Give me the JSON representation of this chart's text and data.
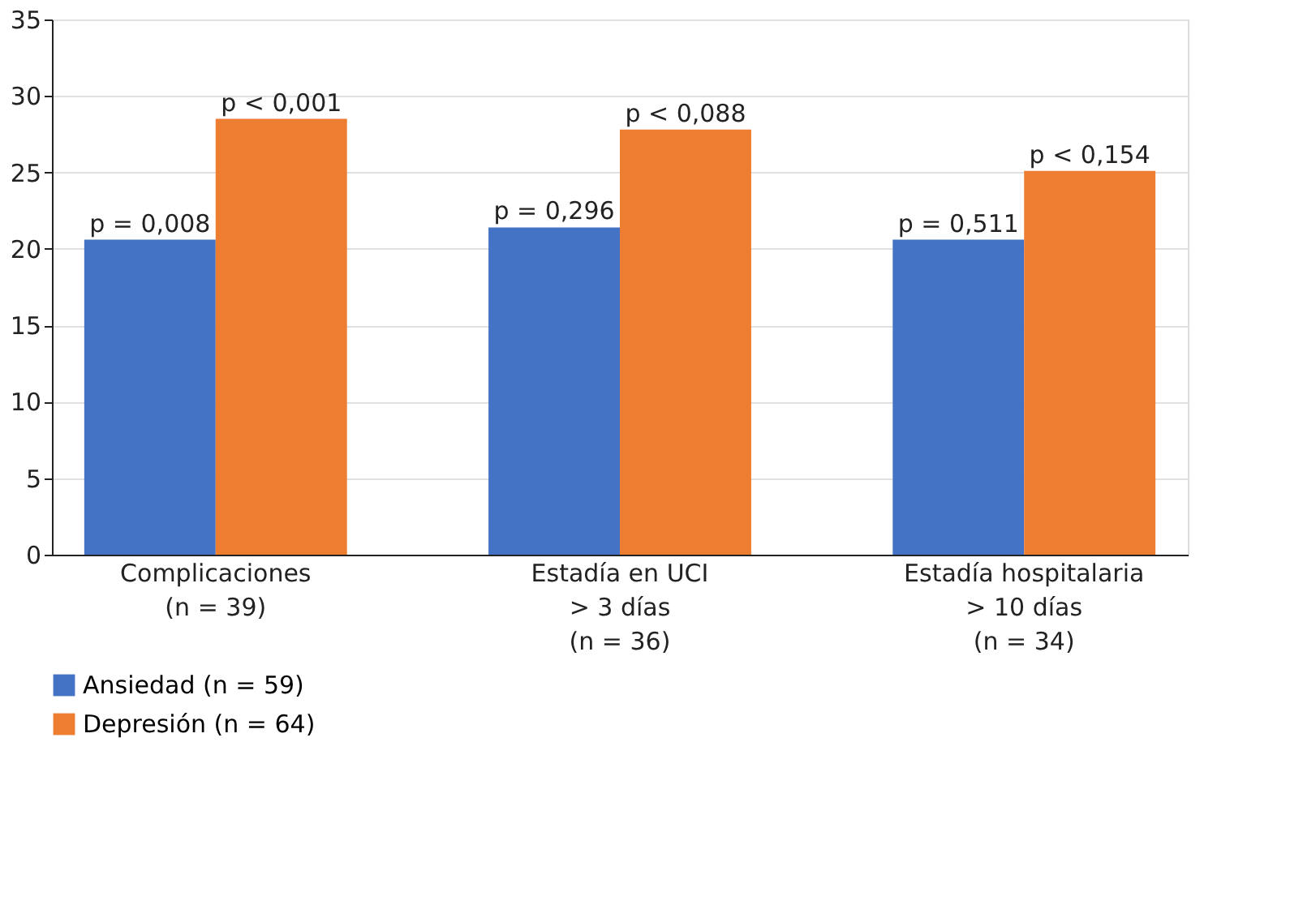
{
  "chart_data": {
    "type": "bar",
    "categories": [
      "Complicaciones\n(n = 39)",
      "Estadía en UCI\n> 3 días\n(n = 36)",
      "Estadía hospitalaria\n> 10 días\n(n = 34)"
    ],
    "series": [
      {
        "name": "Ansiedad (n = 59)",
        "color": "#4472c4",
        "values": [
          20.6,
          21.4,
          20.6
        ]
      },
      {
        "name": "Depresión (n = 64)",
        "color": "#ed7d31",
        "values": [
          28.5,
          27.8,
          25.1
        ]
      }
    ],
    "annotations": [
      {
        "text": "p = 0,008",
        "x": "Complicaciones\n(n = 39)",
        "y": 20.6
      },
      {
        "text": "p < 0,001",
        "x": "Complicaciones\n(n = 39)",
        "y": 28.5
      },
      {
        "text": "p = 0,296",
        "x": "Estadía en UCI\n> 3 días\n(n = 36)",
        "y": 21.4
      },
      {
        "text": "p < 0,088",
        "x": "Estadía en UCI\n> 3 días\n(n = 36)",
        "y": 27.8
      },
      {
        "text": "p = 0,511",
        "x": "Estadía hospitalaria\n> 10 días\n(n = 34)",
        "y": 20.6
      },
      {
        "text": "p < 0,154",
        "x": "Estadía hospitalaria\n> 10 días\n(n = 34)",
        "y": 25.1
      }
    ],
    "ylim": [
      0,
      35
    ],
    "yticks": [
      0,
      5,
      10,
      15,
      20,
      25,
      30,
      35
    ],
    "grid": "y",
    "legend": "bottom left"
  }
}
